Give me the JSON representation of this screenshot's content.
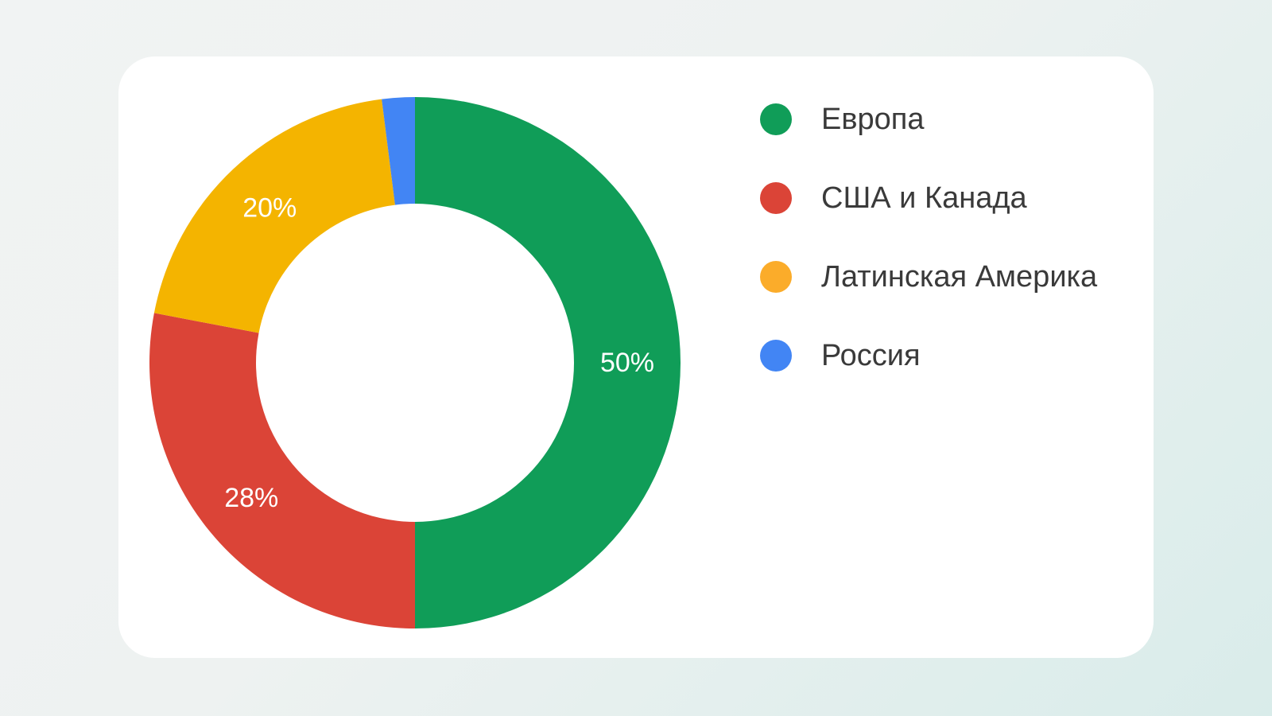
{
  "chart_data": {
    "type": "pie",
    "variant": "donut",
    "categories": [
      "Европа",
      "США и Канада",
      "Латинская Америка",
      "Россия"
    ],
    "values": [
      50,
      28,
      20,
      2
    ],
    "data_labels": [
      "50%",
      "28%",
      "20%",
      ""
    ],
    "colors": [
      "#109d58",
      "#db4437",
      "#f4b400",
      "#4285f4"
    ],
    "legend_colors": [
      "#109d58",
      "#db4437",
      "#fbac2a",
      "#4285f4"
    ],
    "legend_position": "right"
  }
}
